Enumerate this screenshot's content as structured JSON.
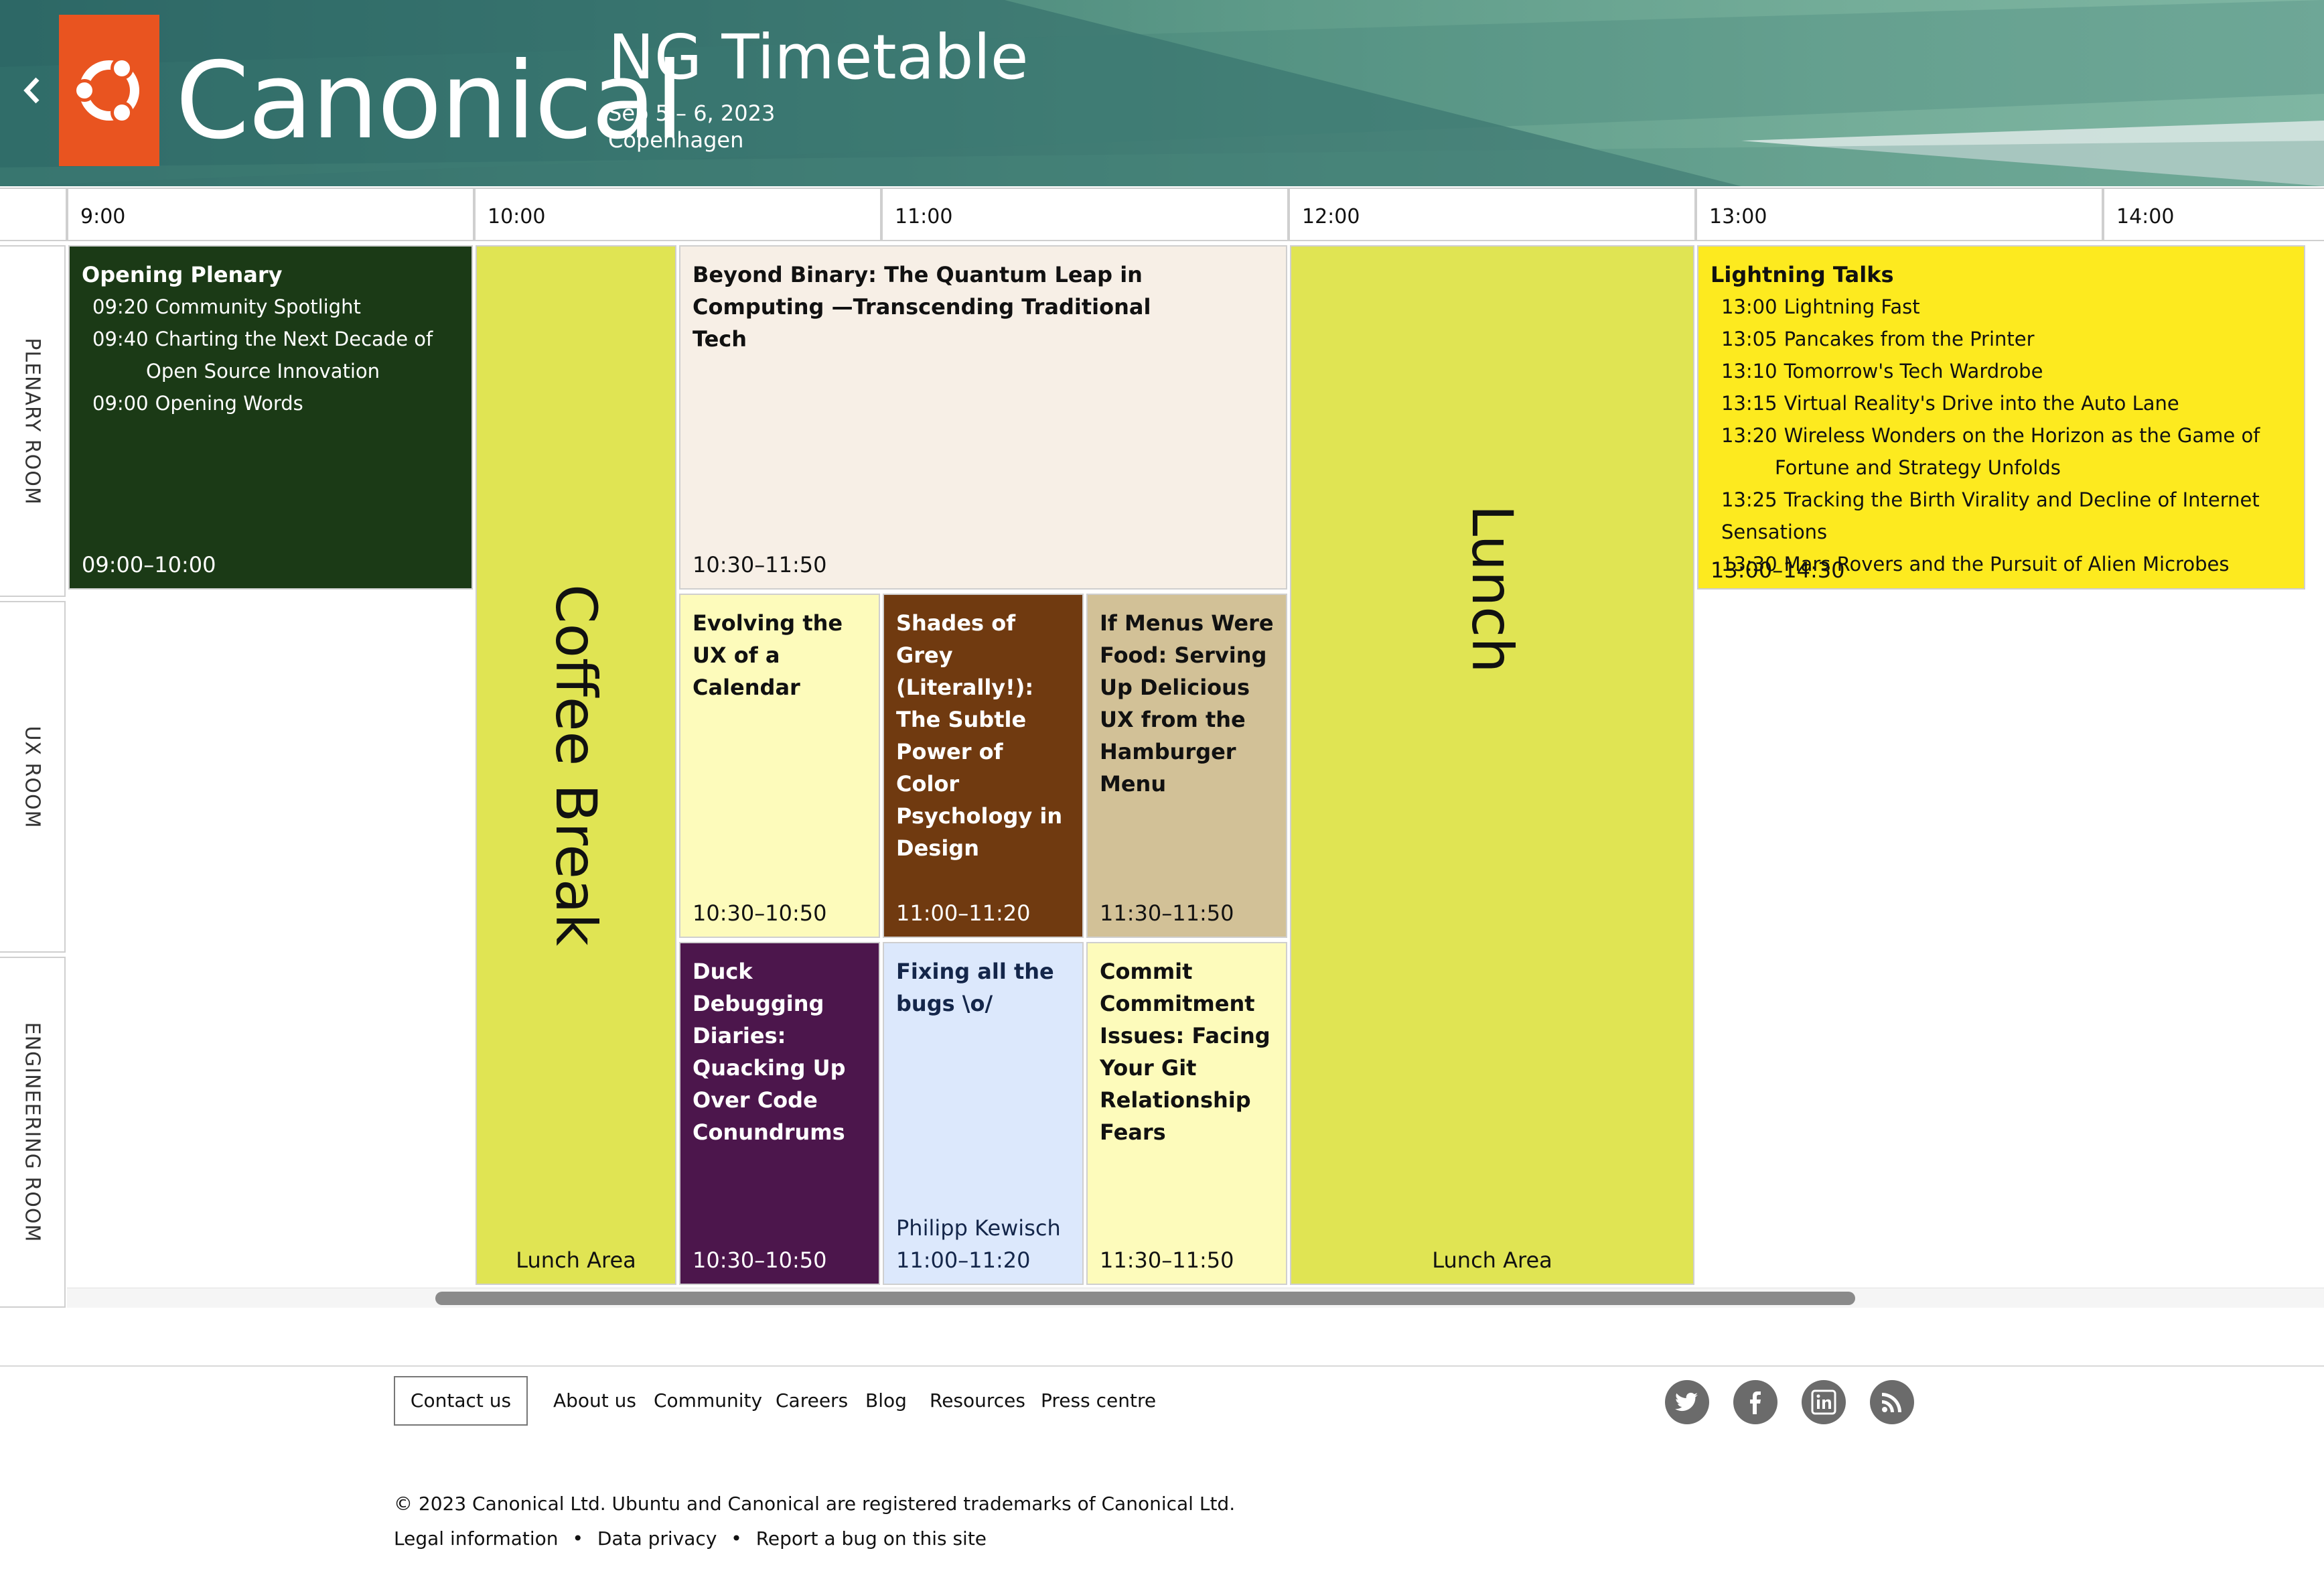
{
  "brand": {
    "name": "Canonical",
    "logo_color": "#e95420"
  },
  "header": {
    "title": "NG Timetable",
    "dates": "Sep 5 – 6, 2023",
    "location": "Copenhagen",
    "back_icon": "chevron-left-icon"
  },
  "times": [
    "9:00",
    "10:00",
    "11:00",
    "12:00",
    "13:00",
    "14:00"
  ],
  "rooms": [
    "PLENARY ROOM",
    "UX ROOM",
    "ENGINEERING ROOM"
  ],
  "events": {
    "opening": {
      "title": "Opening Plenary",
      "items": [
        {
          "time": "09:20",
          "label": "Community Spotlight"
        },
        {
          "time": "09:40",
          "label": "Charting the Next Decade of Open Source Innovation"
        },
        {
          "time": "09:00",
          "label": "Opening Words"
        }
      ],
      "time": "09:00–10:00",
      "color": "#1b3a16"
    },
    "coffee": {
      "title": "Coffee Break",
      "location": "Lunch Area",
      "color": "#e0e453"
    },
    "quantum": {
      "title": "Beyond Binary: The Quantum Leap in Computing —Transcending Traditional Tech",
      "time": "10:30–11:50",
      "color": "#f7efe6"
    },
    "calendar": {
      "title": "Evolving the UX of a Calendar",
      "time": "10:30–10:50",
      "color": "#fdfbbb"
    },
    "grey": {
      "title": "Shades of Grey (Literally!): The Subtle Power of Color Psychology in Design",
      "time": "11:00–11:20",
      "color": "#703a10"
    },
    "menus": {
      "title": "If Menus Were Food: Serving Up Delicious UX from the Hamburger Menu",
      "time": "11:30–11:50",
      "color": "#d2c197"
    },
    "duck": {
      "title": "Duck Debugging Diaries: Quacking Up Over Code Conundrums",
      "time": "10:30–10:50",
      "color": "#4c164c"
    },
    "bugs": {
      "title": "Fixing all the bugs \\o/",
      "speaker": "Philipp Kewisch",
      "time": "11:00–11:20",
      "color": "#dce8fc"
    },
    "commit": {
      "title": "Commit Commitment Issues: Facing Your Git Relationship Fears",
      "time": "11:30–11:50",
      "color": "#fdfbbb"
    },
    "lunch": {
      "title": "Lunch",
      "location": "Lunch Area",
      "color": "#e0e453"
    },
    "lightning": {
      "title": "Lightning Talks",
      "items": [
        {
          "time": "13:00",
          "label": "Lightning Fast"
        },
        {
          "time": "13:05",
          "label": "Pancakes from the Printer"
        },
        {
          "time": "13:10",
          "label": "Tomorrow's Tech Wardrobe"
        },
        {
          "time": "13:15",
          "label": "Virtual Reality's Drive into the Auto Lane"
        },
        {
          "time": "13:20",
          "label": "Wireless Wonders on the Horizon as the Game of Fortune and Strategy Unfolds"
        },
        {
          "time": "13:25",
          "label": "Tracking the Birth Virality and Decline of Internet Sensations"
        },
        {
          "time": "13:30",
          "label": "Mars Rovers and the Pursuit of Alien Microbes"
        }
      ],
      "time": "13:00–14:30",
      "color": "#fdea1f"
    }
  },
  "footer": {
    "contact": "Contact us",
    "links": [
      "About us",
      "Community",
      "Careers",
      "Blog",
      "Resources",
      "Press centre"
    ],
    "social_icons": [
      "twitter-icon",
      "facebook-icon",
      "linkedin-icon",
      "rss-icon"
    ],
    "copyright": "© 2023 Canonical Ltd. Ubuntu and Canonical are registered trademarks of Canonical Ltd.",
    "legal": [
      "Legal information",
      "Data privacy",
      "Report a bug on this site"
    ]
  }
}
